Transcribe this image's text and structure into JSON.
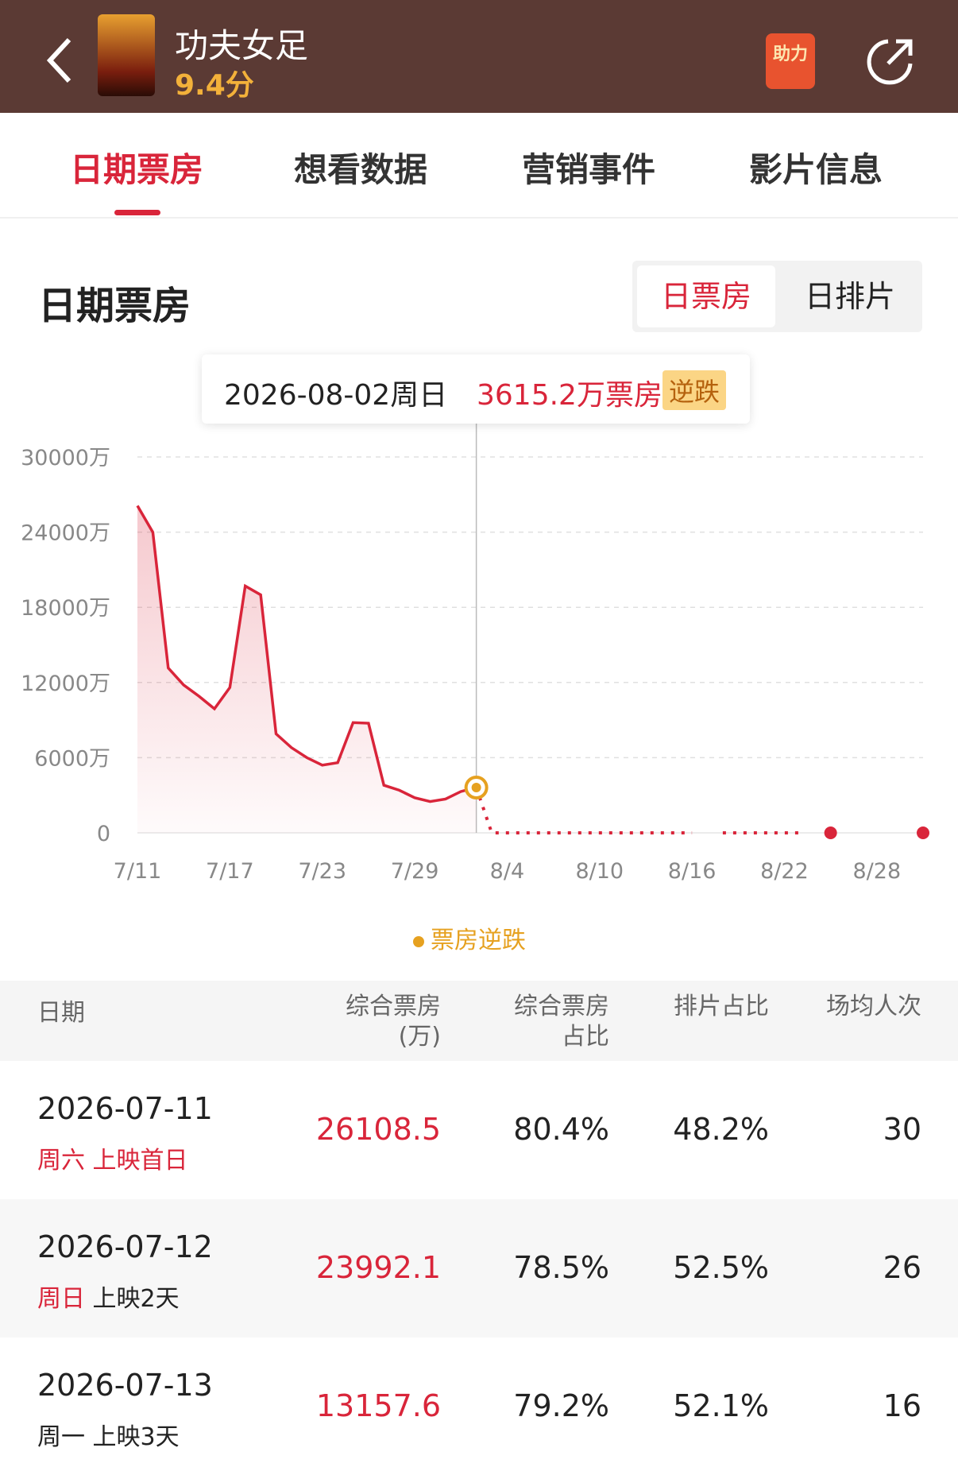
{
  "header": {
    "title": "功夫女足",
    "rating": "9.4分",
    "boost": "助力"
  },
  "tabs": [
    "日期票房",
    "想看数据",
    "营销事件",
    "影片信息"
  ],
  "section": {
    "title": "日期票房",
    "toggle": [
      "日票房",
      "日排片"
    ]
  },
  "chart": {
    "type": "line",
    "grid": true,
    "xlim": [
      0,
      51
    ],
    "xticks": [
      {
        "value": 0,
        "label": "7/11"
      },
      {
        "value": 6,
        "label": "7/17"
      },
      {
        "value": 12,
        "label": "7/23"
      },
      {
        "value": 18,
        "label": "7/29"
      },
      {
        "value": 24,
        "label": "8/4"
      },
      {
        "value": 30,
        "label": "8/10"
      },
      {
        "value": 36,
        "label": "8/16"
      },
      {
        "value": 42,
        "label": "8/22"
      },
      {
        "value": 48,
        "label": "8/28"
      }
    ],
    "ylim": [
      0,
      30000
    ],
    "yticks": [
      0,
      {
        "value": 6000,
        "label": "6000万"
      },
      {
        "value": 12000,
        "label": "12000万"
      },
      {
        "value": 18000,
        "label": "18000万"
      },
      {
        "value": 24000,
        "label": "24000万"
      },
      {
        "value": 30000,
        "label": "30000万"
      }
    ],
    "series": [
      {
        "color": "#d9253a",
        "x": [
          0,
          1,
          2,
          3,
          4,
          5,
          6,
          7,
          8,
          9,
          10,
          11,
          12,
          13,
          14,
          15,
          16,
          17,
          18,
          19,
          20,
          21,
          22
        ],
        "values": [
          26108.5,
          23992.1,
          13157.6,
          11800,
          10900,
          9900,
          11600,
          19700,
          19000,
          7900,
          6800,
          6000,
          5400,
          5600,
          8800,
          8750,
          3800,
          3400,
          2800,
          2500,
          2700,
          3300,
          3615.2
        ]
      },
      {
        "color": "#d9253a",
        "dashed": true,
        "x": [
          22,
          23,
          24,
          25,
          26,
          27,
          28,
          29,
          30,
          31,
          32,
          33,
          34,
          35,
          36,
          37,
          38,
          39,
          40,
          41,
          42,
          43,
          44,
          45,
          46,
          47,
          48,
          49,
          50,
          51
        ],
        "values": [
          3615.2,
          0,
          0,
          0,
          0,
          0,
          0,
          0,
          0,
          0,
          0,
          0,
          0,
          0,
          0,
          null,
          0,
          0,
          0,
          0,
          0,
          0,
          null,
          0,
          null,
          null,
          null,
          null,
          null,
          0
        ]
      }
    ],
    "highlight": {
      "x": 22,
      "color": "#e6a120"
    },
    "tooltip": {
      "date": "2026-08-02周日",
      "value": 3615.2,
      "unit": "万票房",
      "tag": "逆跌"
    },
    "legend": {
      "label": "票房逆跌",
      "color": "#e6a120"
    }
  },
  "table": {
    "columns": [
      "日期",
      "综合票房\n(万)",
      "综合票房\n占比",
      "排片占比",
      "场均人次"
    ],
    "rows": [
      {
        "date": "2026-07-11",
        "weekday": "周六",
        "day": "上映首日",
        "box_office": 26108.5,
        "share": "80.4%",
        "schedule": "48.2%",
        "avg": 30
      },
      {
        "date": "2026-07-12",
        "weekday": "周日",
        "day": "上映2天",
        "box_office": 23992.1,
        "share": "78.5%",
        "schedule": "52.5%",
        "avg": 26
      },
      {
        "date": "2026-07-13",
        "weekday": "周一",
        "day": "上映3天",
        "box_office": 13157.6,
        "share": "79.2%",
        "schedule": "52.1%",
        "avg": 16
      }
    ]
  }
}
